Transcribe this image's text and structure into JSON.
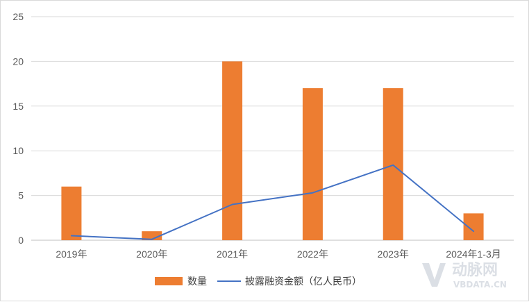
{
  "chart_data": {
    "type": "bar",
    "categories": [
      "2019年",
      "2020年",
      "2021年",
      "2022年",
      "2023年",
      "2024年1-3月"
    ],
    "series": [
      {
        "name": "数量",
        "type": "bar",
        "color": "#ED7D31",
        "values": [
          6,
          1,
          20,
          17,
          17,
          3
        ]
      },
      {
        "name": "披露融资金额（亿人民币）",
        "type": "line",
        "color": "#4472C4",
        "values": [
          0.5,
          0.1,
          4.0,
          5.3,
          8.4,
          1.0
        ]
      }
    ],
    "ylim": [
      0,
      25
    ],
    "yticks": [
      0,
      5,
      10,
      15,
      20,
      25
    ],
    "grid": true,
    "legend_position": "bottom"
  },
  "watermark": {
    "brand": "动脉网",
    "url": "VBDATA.CN"
  }
}
